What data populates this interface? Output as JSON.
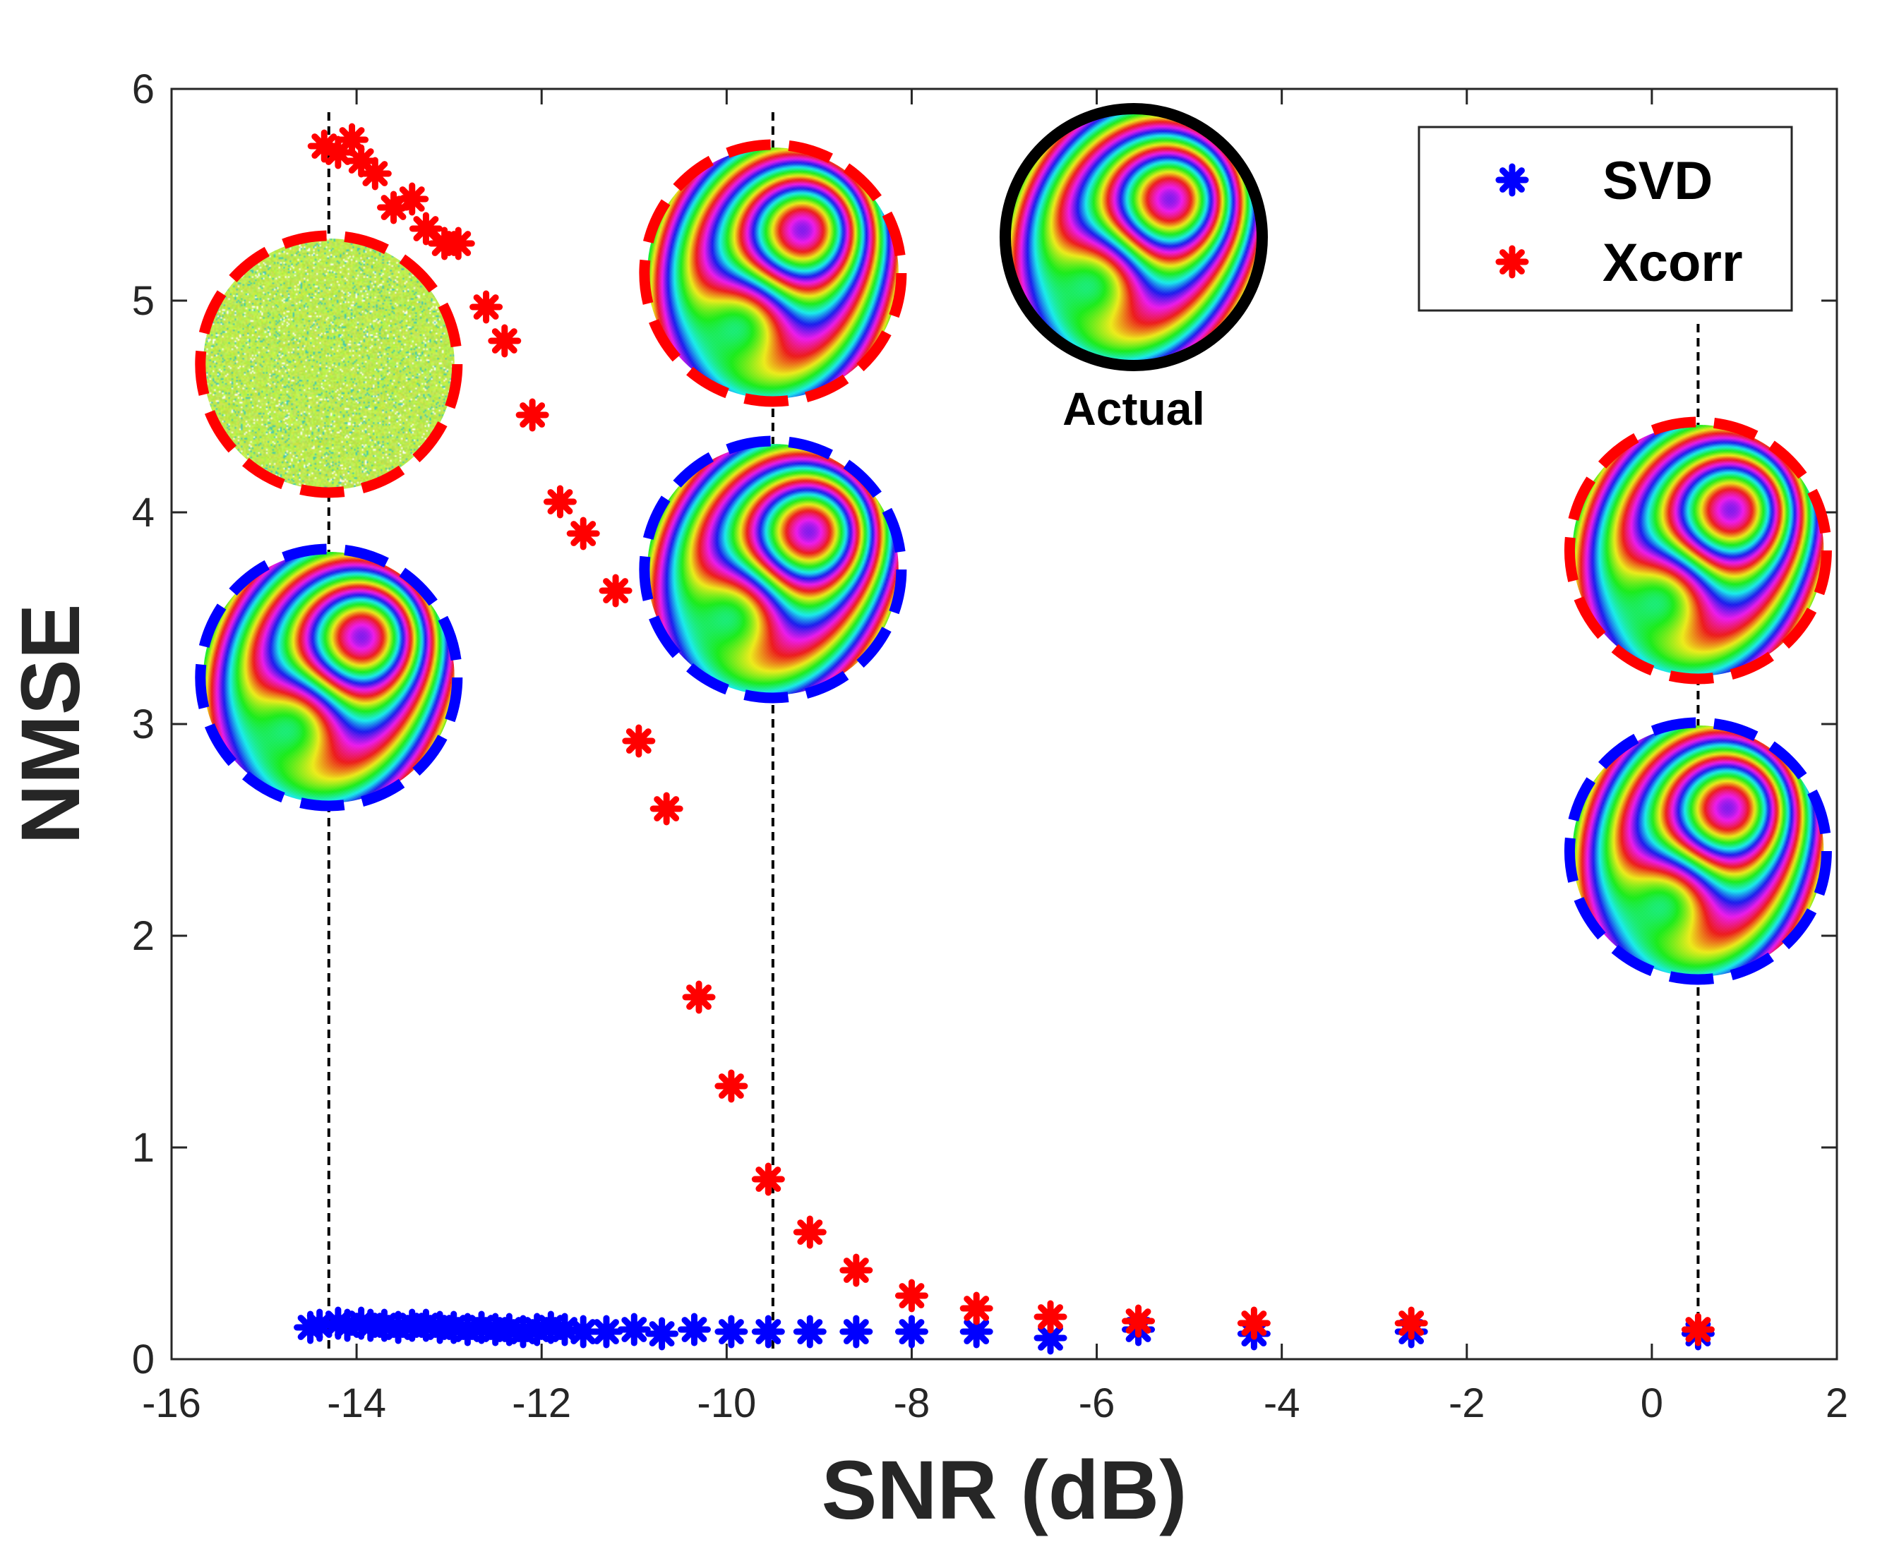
{
  "chart_data": {
    "type": "scatter",
    "title": "",
    "xlabel": "SNR (dB)",
    "ylabel": "NMSE",
    "xlim": [
      -16,
      2
    ],
    "ylim": [
      0,
      6
    ],
    "xticks": [
      "-16",
      "-14",
      "-12",
      "-10",
      "-8",
      "-6",
      "-4",
      "-2",
      "0",
      "2"
    ],
    "yticks": [
      "0",
      "1",
      "2",
      "3",
      "4",
      "5",
      "6"
    ],
    "legend_position": "top-right",
    "series": [
      {
        "name": "SVD",
        "color": "#0000ff",
        "marker": "asterisk",
        "points": [
          [
            -14.5,
            0.15
          ],
          [
            -14.4,
            0.16
          ],
          [
            -14.2,
            0.17
          ],
          [
            -14.1,
            0.16
          ],
          [
            -13.95,
            0.17
          ],
          [
            -13.85,
            0.16
          ],
          [
            -13.7,
            0.16
          ],
          [
            -13.55,
            0.15
          ],
          [
            -13.4,
            0.16
          ],
          [
            -13.25,
            0.16
          ],
          [
            -13.1,
            0.15
          ],
          [
            -12.95,
            0.15
          ],
          [
            -12.8,
            0.14
          ],
          [
            -12.65,
            0.15
          ],
          [
            -12.5,
            0.14
          ],
          [
            -12.35,
            0.14
          ],
          [
            -12.2,
            0.13
          ],
          [
            -12.05,
            0.14
          ],
          [
            -11.9,
            0.15
          ],
          [
            -11.75,
            0.14
          ],
          [
            -11.55,
            0.13
          ],
          [
            -11.3,
            0.13
          ],
          [
            -11.0,
            0.14
          ],
          [
            -10.7,
            0.12
          ],
          [
            -10.35,
            0.14
          ],
          [
            -9.95,
            0.13
          ],
          [
            -9.55,
            0.13
          ],
          [
            -9.1,
            0.13
          ],
          [
            -8.6,
            0.13
          ],
          [
            -8.0,
            0.13
          ],
          [
            -7.3,
            0.13
          ],
          [
            -6.5,
            0.1
          ],
          [
            -5.55,
            0.14
          ],
          [
            -4.3,
            0.12
          ],
          [
            -2.6,
            0.13
          ],
          [
            0.5,
            0.12
          ]
        ]
      },
      {
        "name": "Xcorr",
        "color": "#ff0000",
        "marker": "asterisk",
        "points": [
          [
            -14.35,
            5.73
          ],
          [
            -14.2,
            5.7
          ],
          [
            -14.05,
            5.76
          ],
          [
            -13.95,
            5.66
          ],
          [
            -13.8,
            5.6
          ],
          [
            -13.6,
            5.44
          ],
          [
            -13.4,
            5.48
          ],
          [
            -13.25,
            5.34
          ],
          [
            -13.05,
            5.27
          ],
          [
            -12.9,
            5.27
          ],
          [
            -12.6,
            4.97
          ],
          [
            -12.4,
            4.81
          ],
          [
            -12.1,
            4.46
          ],
          [
            -11.8,
            4.05
          ],
          [
            -11.55,
            3.9
          ],
          [
            -11.2,
            3.63
          ],
          [
            -10.95,
            2.92
          ],
          [
            -10.65,
            2.6
          ],
          [
            -10.3,
            1.71
          ],
          [
            -9.95,
            1.29
          ],
          [
            -9.55,
            0.85
          ],
          [
            -9.1,
            0.6
          ],
          [
            -8.6,
            0.42
          ],
          [
            -8.0,
            0.3
          ],
          [
            -7.3,
            0.24
          ],
          [
            -6.5,
            0.2
          ],
          [
            -5.55,
            0.18
          ],
          [
            -4.3,
            0.17
          ],
          [
            -2.6,
            0.17
          ],
          [
            0.5,
            0.14
          ]
        ]
      }
    ],
    "vertical_lines": [
      {
        "x": -14.3,
        "y0": 0.05,
        "y1": 5.9
      },
      {
        "x": -9.5,
        "y0": 0.05,
        "y1": 5.9
      },
      {
        "x": 0.5,
        "y0": 0.05,
        "y1": 4.9
      }
    ],
    "insets": [
      {
        "label": "Actual",
        "x": -5.6,
        "y": 5.3,
        "border": "black",
        "style": "solid",
        "texture": "fringe",
        "variant": 0
      },
      {
        "x": -14.3,
        "y": 4.7,
        "border": "red",
        "style": "dashed",
        "texture": "noise",
        "variant": 0
      },
      {
        "x": -14.3,
        "y": 3.22,
        "border": "blue",
        "style": "dashed",
        "texture": "fringe",
        "variant": 1
      },
      {
        "x": -9.5,
        "y": 5.13,
        "border": "red",
        "style": "dashed",
        "texture": "fringe",
        "variant": 2
      },
      {
        "x": -9.5,
        "y": 3.73,
        "border": "blue",
        "style": "dashed",
        "texture": "fringe",
        "variant": 3
      },
      {
        "x": 0.5,
        "y": 3.82,
        "border": "red",
        "style": "dashed",
        "texture": "fringe",
        "variant": 4
      },
      {
        "x": 0.5,
        "y": 2.4,
        "border": "blue",
        "style": "dashed",
        "texture": "fringe",
        "variant": 5
      }
    ]
  }
}
